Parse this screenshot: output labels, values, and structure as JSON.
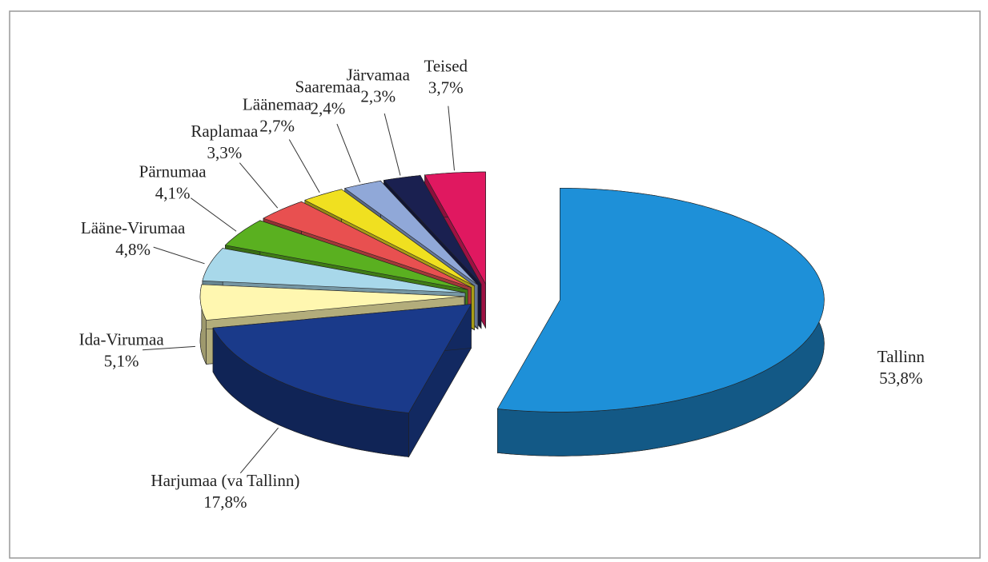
{
  "chart_data": {
    "type": "pie",
    "categories": [
      "Tallinn",
      "Harjumaa (va Tallinn)",
      "Ida-Virumaa",
      "Lääne-Virumaa",
      "Pärnumaa",
      "Raplamaa",
      "Läänemaa",
      "Saaremaa",
      "Järvamaa",
      "Teised"
    ],
    "values": [
      53.8,
      17.8,
      5.1,
      4.8,
      4.1,
      3.3,
      2.7,
      2.4,
      2.3,
      3.7
    ],
    "value_labels": [
      "53,8%",
      "17,8%",
      "5,1%",
      "4,8%",
      "4,1%",
      "3,3%",
      "2,7%",
      "2,4%",
      "2,3%",
      "3,7%"
    ],
    "colors": [
      "#1e90d8",
      "#1a3a8a",
      "#fff7b0",
      "#a8d8ea",
      "#5ab020",
      "#e85050",
      "#f0e020",
      "#90a8d8",
      "#1a2050",
      "#e01860"
    ]
  }
}
